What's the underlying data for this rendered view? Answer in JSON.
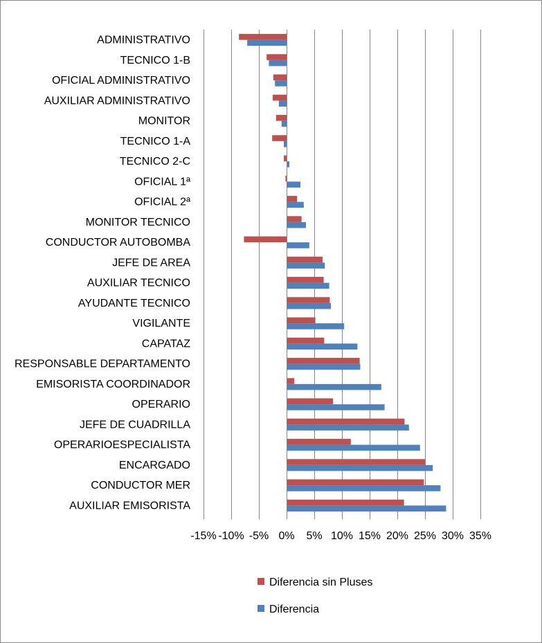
{
  "chart_data": {
    "type": "bar",
    "orientation": "horizontal",
    "title": "",
    "xlabel": "",
    "ylabel": "",
    "xlim": [
      -0.15,
      0.35
    ],
    "grid": true,
    "legend_position": "bottom",
    "categories": [
      "ADMINISTRATIVO",
      "TECNICO 1-B",
      "OFICIAL ADMINISTRATIVO",
      "AUXILIAR ADMINISTRATIVO",
      "MONITOR",
      "TECNICO 1-A",
      "TECNICO 2-C",
      "OFICIAL 1ª",
      "OFICIAL 2ª",
      "MONITOR TECNICO",
      "CONDUCTOR AUTOBOMBA",
      "JEFE DE AREA",
      "AUXILIAR TECNICO",
      "AYUDANTE TECNICO",
      "VIGILANTE",
      "CAPATAZ",
      "RESPONSABLE DEPARTAMENTO",
      "EMISORISTA COORDINADOR",
      "OPERARIO",
      "JEFE DE CUADRILLA",
      "OPERARIOESPECIALISTA",
      "ENCARGADO",
      "CONDUCTOR MER",
      "AUXILIAR EMISORISTA"
    ],
    "series": [
      {
        "name": "Diferencia sin Pluses",
        "color": "#C0504D",
        "values": [
          -0.086,
          -0.036,
          -0.024,
          -0.025,
          -0.019,
          -0.026,
          -0.005,
          -0.002,
          0.019,
          0.027,
          -0.077,
          0.065,
          0.067,
          0.078,
          0.052,
          0.068,
          0.132,
          0.014,
          0.084,
          0.213,
          0.116,
          0.25,
          0.248,
          0.212
        ]
      },
      {
        "name": "Diferencia",
        "color": "#4F81BD",
        "values": [
          -0.071,
          -0.032,
          -0.021,
          -0.014,
          -0.009,
          -0.005,
          0.005,
          0.025,
          0.031,
          0.035,
          0.041,
          0.069,
          0.077,
          0.08,
          0.104,
          0.128,
          0.133,
          0.171,
          0.177,
          0.221,
          0.241,
          0.264,
          0.278,
          0.288
        ]
      }
    ],
    "ticks": [
      "-15%",
      "-10%",
      "-5%",
      "0%",
      "5%",
      "10%",
      "15%",
      "20%",
      "25%",
      "30%",
      "35%"
    ],
    "tick_values": [
      -0.15,
      -0.1,
      -0.05,
      0,
      0.05,
      0.1,
      0.15,
      0.2,
      0.25,
      0.3,
      0.35
    ]
  }
}
